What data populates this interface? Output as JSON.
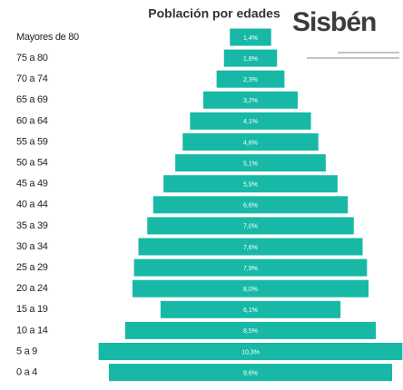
{
  "chart_data": {
    "type": "bar",
    "orientation": "horizontal-centered",
    "title": "Población por edades",
    "logo": "Sisbén",
    "color": "#17b8a6",
    "categories": [
      "Mayores de 80",
      "75 a 80",
      "70 a 74",
      "65 a 69",
      "60 a 64",
      "55 a 59",
      "50 a 54",
      "45 a 49",
      "40 a 44",
      "35 a 39",
      "30 a 34",
      "25 a 29",
      "20 a 24",
      "15 a 19",
      "10 a 14",
      "5 a 9",
      "0 a 4"
    ],
    "values": [
      1.4,
      1.8,
      2.3,
      3.2,
      4.1,
      4.6,
      5.1,
      5.9,
      6.6,
      7.0,
      7.6,
      7.9,
      8.0,
      6.1,
      8.5,
      10.3,
      9.6
    ],
    "value_labels": [
      "1,4%",
      "1,8%",
      "2,3%",
      "3,2%",
      "4,1%",
      "4,6%",
      "5,1%",
      "5,9%",
      "6,6%",
      "7,0%",
      "7,6%",
      "7,9%",
      "8,0%",
      "6,1%",
      "8,5%",
      "10,3%",
      "9,6%"
    ]
  }
}
